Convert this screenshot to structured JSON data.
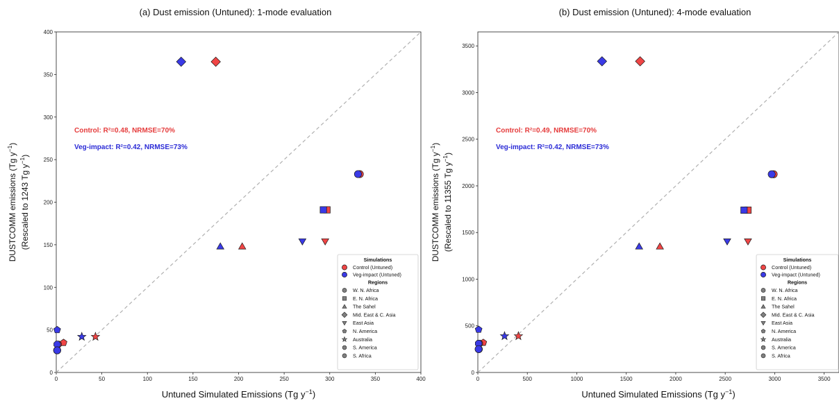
{
  "colors": {
    "control": "#f04545",
    "veg": "#3a3ae6",
    "diag": "#b0b0b0"
  },
  "legend": {
    "sim_header": "Simulations",
    "sims": [
      {
        "label": "Control (Untuned)",
        "series": "control"
      },
      {
        "label": "Veg-impact (Untuned)",
        "series": "veg"
      }
    ],
    "reg_header": "Regions",
    "regions": [
      {
        "label": "W. N. Africa",
        "marker": "circle"
      },
      {
        "label": "E. N. Africa",
        "marker": "square"
      },
      {
        "label": "The Sahel",
        "marker": "triangle-up"
      },
      {
        "label": "Mid. East & C. Asia",
        "marker": "diamond"
      },
      {
        "label": "East Asia",
        "marker": "triangle-down"
      },
      {
        "label": "N. America",
        "marker": "pentagon"
      },
      {
        "label": "Australia",
        "marker": "star"
      },
      {
        "label": "S. America",
        "marker": "octagon"
      },
      {
        "label": "S. Africa",
        "marker": "circle"
      }
    ]
  },
  "chart_data": [
    {
      "type": "scatter",
      "title": "(a) Dust emission (Untuned): 1-mode evaluation",
      "xlabel": "Untuned Simulated Emissions (Tg y",
      "xlabel_sup": "−1",
      "xlabel_end": ")",
      "ylabel_line1": "DUSTCOMM emissions (Tg y",
      "ylabel_line1_sup": "−1",
      "ylabel_line1_end": ")",
      "ylabel_line2": "(Rescaled to 1243 Tg y",
      "ylabel_line2_sup": "−1",
      "ylabel_line2_end": ")",
      "xlim": [
        0,
        400
      ],
      "ylim": [
        0,
        400
      ],
      "xticks": [
        0,
        50,
        100,
        150,
        200,
        250,
        300,
        350,
        400
      ],
      "yticks": [
        0,
        50,
        100,
        150,
        200,
        250,
        300,
        350,
        400
      ],
      "diagonal": true,
      "stats": {
        "control": "Control: R²=0.48, NRMSE=70%",
        "veg": "Veg-impact: R²=0.42, NRMSE=73%"
      },
      "series": [
        {
          "name": "Control (Untuned)",
          "key": "control",
          "points": [
            {
              "region": "W. N. Africa",
              "x": 333,
              "y": 233
            },
            {
              "region": "E. N. Africa",
              "x": 297,
              "y": 191
            },
            {
              "region": "The Sahel",
              "x": 204,
              "y": 148
            },
            {
              "region": "Mid. East & C. Asia",
              "x": 175,
              "y": 365
            },
            {
              "region": "East Asia",
              "x": 295,
              "y": 154
            },
            {
              "region": "N. America",
              "x": 8,
              "y": 35
            },
            {
              "region": "Australia",
              "x": 43,
              "y": 42
            },
            {
              "region": "S. America",
              "x": 2,
              "y": 33
            },
            {
              "region": "S. Africa",
              "x": 1,
              "y": 26
            }
          ]
        },
        {
          "name": "Veg-impact (Untuned)",
          "key": "veg",
          "points": [
            {
              "region": "W. N. Africa",
              "x": 331,
              "y": 233
            },
            {
              "region": "E. N. Africa",
              "x": 293,
              "y": 191
            },
            {
              "region": "The Sahel",
              "x": 180,
              "y": 148
            },
            {
              "region": "Mid. East & C. Asia",
              "x": 137,
              "y": 365
            },
            {
              "region": "East Asia",
              "x": 270,
              "y": 154
            },
            {
              "region": "N. America",
              "x": 1,
              "y": 50
            },
            {
              "region": "Australia",
              "x": 28,
              "y": 42
            },
            {
              "region": "S. America",
              "x": 1,
              "y": 33
            },
            {
              "region": "S. Africa",
              "x": 1,
              "y": 26
            }
          ]
        }
      ]
    },
    {
      "type": "scatter",
      "title": "(b) Dust emission (Untuned): 4-mode evaluation",
      "xlabel": "Untuned Simulated Emissions (Tg y",
      "xlabel_sup": "−1",
      "xlabel_end": ")",
      "ylabel_line1": "DUSTCOMM emissions (Tg y",
      "ylabel_line1_sup": "−1",
      "ylabel_line1_end": ")",
      "ylabel_line2": "(Rescaled to 11355 Tg y",
      "ylabel_line2_sup": "−1",
      "ylabel_line2_end": ")",
      "xlim": [
        0,
        3650
      ],
      "ylim": [
        0,
        3650
      ],
      "xticks": [
        0,
        500,
        1000,
        1500,
        2000,
        2500,
        3000,
        3500
      ],
      "yticks": [
        0,
        500,
        1000,
        1500,
        2000,
        2500,
        3000,
        3500
      ],
      "diagonal": true,
      "stats": {
        "control": "Control: R²=0.49, NRMSE=70%",
        "veg": "Veg-impact: R²=0.42, NRMSE=73%"
      },
      "series": [
        {
          "name": "Control (Untuned)",
          "key": "control",
          "points": [
            {
              "region": "W. N. Africa",
              "x": 2990,
              "y": 2125
            },
            {
              "region": "E. N. Africa",
              "x": 2730,
              "y": 1740
            },
            {
              "region": "The Sahel",
              "x": 1840,
              "y": 1350
            },
            {
              "region": "Mid. East & C. Asia",
              "x": 1640,
              "y": 3335
            },
            {
              "region": "East Asia",
              "x": 2730,
              "y": 1405
            },
            {
              "region": "N. America",
              "x": 55,
              "y": 320
            },
            {
              "region": "Australia",
              "x": 410,
              "y": 390
            },
            {
              "region": "S. America",
              "x": 15,
              "y": 310
            },
            {
              "region": "S. Africa",
              "x": 10,
              "y": 250
            }
          ]
        },
        {
          "name": "Veg-impact (Untuned)",
          "key": "veg",
          "points": [
            {
              "region": "W. N. Africa",
              "x": 2970,
              "y": 2125
            },
            {
              "region": "E. N. Africa",
              "x": 2690,
              "y": 1740
            },
            {
              "region": "The Sahel",
              "x": 1630,
              "y": 1350
            },
            {
              "region": "Mid. East & C. Asia",
              "x": 1255,
              "y": 3335
            },
            {
              "region": "East Asia",
              "x": 2520,
              "y": 1405
            },
            {
              "region": "N. America",
              "x": 8,
              "y": 460
            },
            {
              "region": "Australia",
              "x": 270,
              "y": 390
            },
            {
              "region": "S. America",
              "x": 8,
              "y": 310
            },
            {
              "region": "S. Africa",
              "x": 8,
              "y": 250
            }
          ]
        }
      ]
    }
  ]
}
